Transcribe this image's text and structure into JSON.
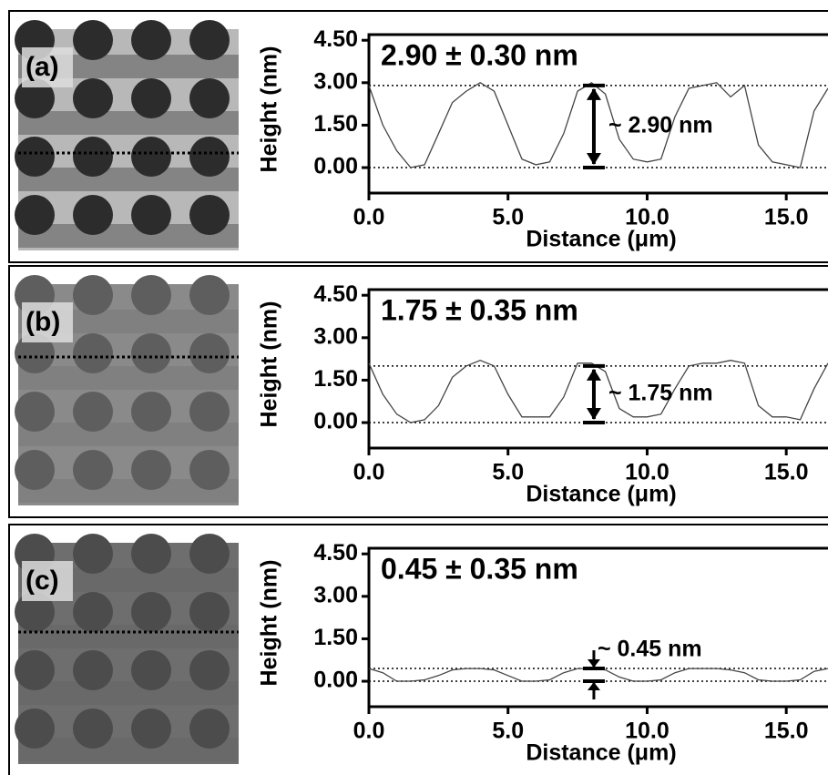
{
  "chart_data": [
    {
      "type": "line",
      "panel_label": "(a)",
      "title": "2.90 ± 0.30 nm",
      "annotation": "~ 2.90 nm",
      "xlabel": "Distance (μm)",
      "ylabel": "Height (nm)",
      "color": "#444444",
      "x": [
        0,
        0.5,
        1,
        1.5,
        2,
        2.5,
        3,
        3.5,
        4,
        4.5,
        5,
        5.5,
        6,
        6.5,
        7,
        7.5,
        8,
        8.5,
        9,
        9.5,
        10,
        10.5,
        11,
        11.5,
        12,
        12.5,
        13,
        13.5,
        14,
        14.5,
        15,
        15.5,
        16,
        16.5
      ],
      "values": [
        2.9,
        1.5,
        0.6,
        0,
        0.1,
        1.2,
        2.3,
        2.7,
        3,
        2.7,
        1.5,
        0.3,
        0.1,
        0.2,
        1.2,
        2.7,
        3,
        2.6,
        1,
        0.3,
        0.2,
        0.3,
        1.8,
        2.8,
        2.9,
        3,
        2.5,
        2.9,
        0.8,
        0.2,
        0.1,
        0,
        2,
        2.8
      ],
      "reference_lines": [
        0,
        2.9
      ],
      "xlim": [
        0,
        16.5
      ],
      "ylim": [
        -0.9,
        4.7
      ],
      "xticks": [
        {
          "value": 0,
          "label": "0.0"
        },
        {
          "value": 5,
          "label": "5.0"
        },
        {
          "value": 10,
          "label": "10.0"
        },
        {
          "value": 15,
          "label": "15.0"
        }
      ],
      "yticks": [
        {
          "value": 0,
          "label": "0.00"
        },
        {
          "value": 1.5,
          "label": "1.50"
        },
        {
          "value": 3,
          "label": "3.00"
        },
        {
          "value": 4.5,
          "label": "4.50"
        }
      ]
    },
    {
      "type": "line",
      "panel_label": "(b)",
      "title": "1.75 ± 0.35 nm",
      "annotation": "~ 1.75 nm",
      "xlabel": "Distance (μm)",
      "ylabel": "Height (nm)",
      "color": "#444444",
      "x": [
        0,
        0.5,
        1,
        1.5,
        2,
        2.5,
        3,
        3.5,
        4,
        4.5,
        5,
        5.5,
        6,
        6.5,
        7,
        7.5,
        8,
        8.5,
        9,
        9.5,
        10,
        10.5,
        11,
        11.5,
        12,
        12.5,
        13,
        13.5,
        14,
        14.5,
        15,
        15.5,
        16,
        16.5
      ],
      "values": [
        2.1,
        1,
        0.3,
        0,
        0.1,
        0.6,
        1.6,
        2,
        2.2,
        2,
        1,
        0.2,
        0.2,
        0.2,
        0.9,
        2.1,
        2.1,
        1.8,
        0.5,
        0.2,
        0.2,
        0.3,
        1.2,
        2,
        2.1,
        2.1,
        2.2,
        2.1,
        0.6,
        0.2,
        0.2,
        0.1,
        1.2,
        2.1
      ],
      "reference_lines": [
        0,
        2.0
      ],
      "xlim": [
        0,
        16.5
      ],
      "ylim": [
        -0.9,
        4.7
      ],
      "xticks": [
        {
          "value": 0,
          "label": "0.0"
        },
        {
          "value": 5,
          "label": "5.0"
        },
        {
          "value": 10,
          "label": "10.0"
        },
        {
          "value": 15,
          "label": "15.0"
        }
      ],
      "yticks": [
        {
          "value": 0,
          "label": "0.00"
        },
        {
          "value": 1.5,
          "label": "1.50"
        },
        {
          "value": 3,
          "label": "3.00"
        },
        {
          "value": 4.5,
          "label": "4.50"
        }
      ]
    },
    {
      "type": "line",
      "panel_label": "(c)",
      "title": "0.45 ± 0.35 nm",
      "annotation": "~ 0.45 nm",
      "xlabel": "Distance (μm)",
      "ylabel": "Height (nm)",
      "color": "#444444",
      "x": [
        0,
        0.5,
        1,
        1.5,
        2,
        2.5,
        3,
        3.5,
        4,
        4.5,
        5,
        5.5,
        6,
        6.5,
        7,
        7.5,
        8,
        8.5,
        9,
        9.5,
        10,
        10.5,
        11,
        11.5,
        12,
        12.5,
        13,
        13.5,
        14,
        14.5,
        15,
        15.5,
        16,
        16.5
      ],
      "values": [
        0.45,
        0.3,
        0,
        0,
        0.05,
        0.2,
        0.4,
        0.45,
        0.45,
        0.4,
        0.2,
        0,
        0,
        0.05,
        0.3,
        0.45,
        0.45,
        0.4,
        0.15,
        0,
        0,
        0.05,
        0.3,
        0.45,
        0.45,
        0.45,
        0.4,
        0.3,
        0.05,
        0,
        0,
        0.05,
        0.35,
        0.45
      ],
      "reference_lines": [
        0,
        0.45
      ],
      "xlim": [
        0,
        16.5
      ],
      "ylim": [
        -0.9,
        4.7
      ],
      "xticks": [
        {
          "value": 0,
          "label": "0.0"
        },
        {
          "value": 5,
          "label": "5.0"
        },
        {
          "value": 10,
          "label": "10.0"
        },
        {
          "value": 15,
          "label": "15.0"
        }
      ],
      "yticks": [
        {
          "value": 0,
          "label": "0.00"
        },
        {
          "value": 1.5,
          "label": "1.50"
        },
        {
          "value": 3,
          "label": "3.00"
        },
        {
          "value": 4.5,
          "label": "4.50"
        }
      ]
    }
  ]
}
